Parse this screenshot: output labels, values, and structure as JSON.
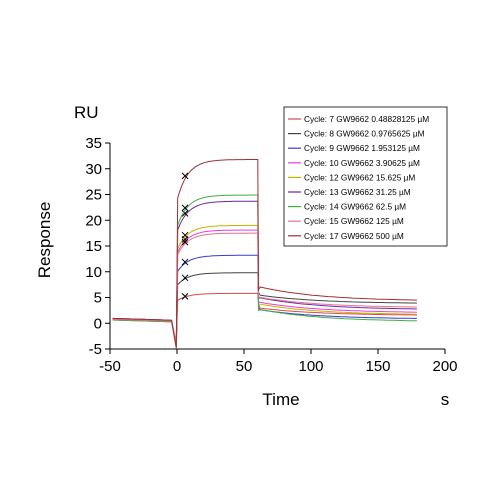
{
  "chart_data": {
    "type": "line",
    "unit_label": "RU",
    "xlabel": "Time",
    "xunit": "s",
    "ylabel": "Response",
    "xlim": [
      -50,
      200
    ],
    "ylim": [
      -5,
      35
    ],
    "xticks": [
      -50,
      0,
      50,
      100,
      150,
      200
    ],
    "yticks": [
      -5,
      0,
      5,
      10,
      15,
      20,
      25,
      30,
      35
    ],
    "legend_position": "top-right",
    "series": [
      {
        "name": "Cycle: 7 GW9662 0.48828125 µM",
        "color": "#d84a4a",
        "assoc_end": 5.8,
        "diss_end": 1.5
      },
      {
        "name": "Cycle: 8 GW9662 0.9765625 µM",
        "color": "#444444",
        "assoc_end": 9.8,
        "diss_end": 3.8
      },
      {
        "name": "Cycle: 9 GW9662 1.953125 µM",
        "color": "#3a3ad0",
        "assoc_end": 13.2,
        "diss_end": 0.8
      },
      {
        "name": "Cycle: 10 GW9662 3.90625 µM",
        "color": "#e040e0",
        "assoc_end": 18.1,
        "diss_end": 2.0
      },
      {
        "name": "Cycle: 12 GW9662 15.625 µM",
        "color": "#c8b000",
        "assoc_end": 19.0,
        "diss_end": 1.6
      },
      {
        "name": "Cycle: 13 GW9662 31.25 µM",
        "color": "#6a2aa8",
        "assoc_end": 23.7,
        "diss_end": 2.6
      },
      {
        "name": "Cycle: 14 GW9662 62.5 µM",
        "color": "#40b040",
        "assoc_end": 24.9,
        "diss_end": 0.3
      },
      {
        "name": "Cycle: 15 GW9662 125 µM",
        "color": "#e87090",
        "assoc_end": 17.5,
        "diss_end": 3.0
      },
      {
        "name": "Cycle: 17 GW9662 500 µM",
        "color": "#a03030",
        "assoc_end": 31.8,
        "diss_end": 4.3
      }
    ],
    "injection_start": 0,
    "injection_end": 60,
    "x_end": 180
  }
}
